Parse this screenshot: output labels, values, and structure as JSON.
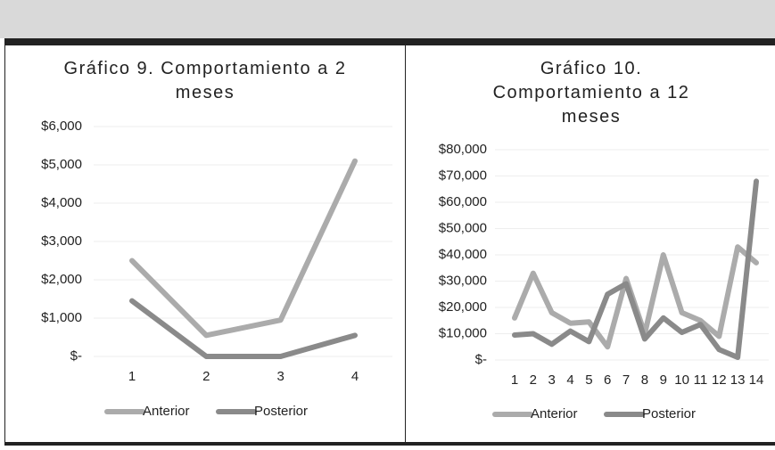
{
  "chart_data": [
    {
      "type": "line",
      "title": "Gráfico 9. Comportamiento a 2 meses",
      "categories": [
        "1",
        "2",
        "3",
        "4"
      ],
      "series": [
        {
          "name": "Anterior",
          "color": "#ababab",
          "values": [
            2500,
            550,
            950,
            5100
          ]
        },
        {
          "name": "Posterior",
          "color": "#8a8a8a",
          "values": [
            1450,
            0,
            0,
            550
          ]
        }
      ],
      "ylim": [
        0,
        6000
      ],
      "yticks": [
        {
          "value": 0,
          "label": "$-"
        },
        {
          "value": 1000,
          "label": "$1,000"
        },
        {
          "value": 2000,
          "label": "$2,000"
        },
        {
          "value": 3000,
          "label": "$3,000"
        },
        {
          "value": 4000,
          "label": "$4,000"
        },
        {
          "value": 5000,
          "label": "$5,000"
        },
        {
          "value": 6000,
          "label": "$6,000"
        }
      ],
      "grid": true,
      "legend": "bottom"
    },
    {
      "type": "line",
      "title": "Gráfico 10. Comportamiento a 12 meses",
      "categories": [
        "1",
        "2",
        "3",
        "4",
        "5",
        "6",
        "7",
        "8",
        "9",
        "10",
        "11",
        "12",
        "13",
        "14"
      ],
      "series": [
        {
          "name": "Anterior",
          "color": "#ababab",
          "values": [
            16000,
            33000,
            18000,
            14000,
            14500,
            5000,
            31000,
            10000,
            40000,
            18000,
            15000,
            9000,
            43000,
            37000
          ]
        },
        {
          "name": "Posterior",
          "color": "#8a8a8a",
          "values": [
            9500,
            10000,
            6000,
            11000,
            7000,
            25000,
            29000,
            8000,
            16000,
            10500,
            13500,
            4000,
            1000,
            68000
          ]
        }
      ],
      "ylim": [
        0,
        80000
      ],
      "yticks": [
        {
          "value": 0,
          "label": "$-"
        },
        {
          "value": 10000,
          "label": "$10,000"
        },
        {
          "value": 20000,
          "label": "$20,000"
        },
        {
          "value": 30000,
          "label": "$30,000"
        },
        {
          "value": 40000,
          "label": "$40,000"
        },
        {
          "value": 50000,
          "label": "$50,000"
        },
        {
          "value": 60000,
          "label": "$60,000"
        },
        {
          "value": 70000,
          "label": "$70,000"
        },
        {
          "value": 80000,
          "label": "$80,000"
        }
      ],
      "grid": true,
      "legend": "bottom"
    }
  ]
}
